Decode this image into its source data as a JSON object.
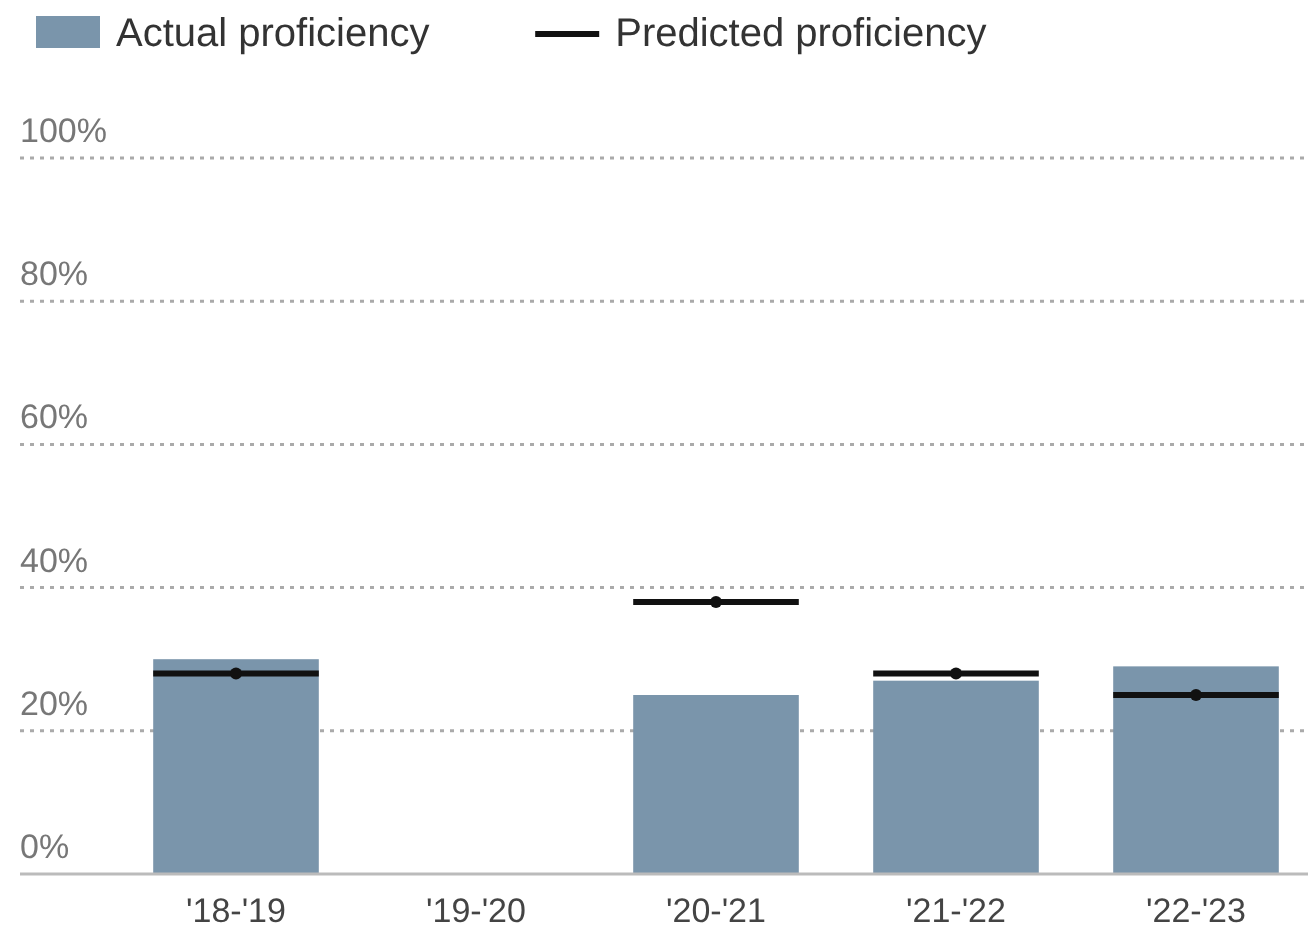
{
  "chart_data": {
    "type": "bar",
    "categories": [
      "'18-'19",
      "'19-'20",
      "'20-'21",
      "'21-'22",
      "'22-'23"
    ],
    "series": [
      {
        "name": "Actual proficiency",
        "type": "bar",
        "color": "#7a95ab",
        "values": [
          30,
          null,
          25,
          27,
          29
        ]
      },
      {
        "name": "Predicted proficiency",
        "type": "scatter",
        "color": "#111111",
        "values": [
          28,
          null,
          38,
          28,
          25
        ]
      }
    ],
    "ylim": [
      0,
      100
    ],
    "yticks": [
      {
        "value": 0,
        "label": "0%"
      },
      {
        "value": 20,
        "label": "20%"
      },
      {
        "value": 40,
        "label": "40%"
      },
      {
        "value": 60,
        "label": "60%"
      },
      {
        "value": 80,
        "label": "80%"
      },
      {
        "value": 100,
        "label": "100%"
      }
    ],
    "grid": "y",
    "legend": "top left"
  }
}
